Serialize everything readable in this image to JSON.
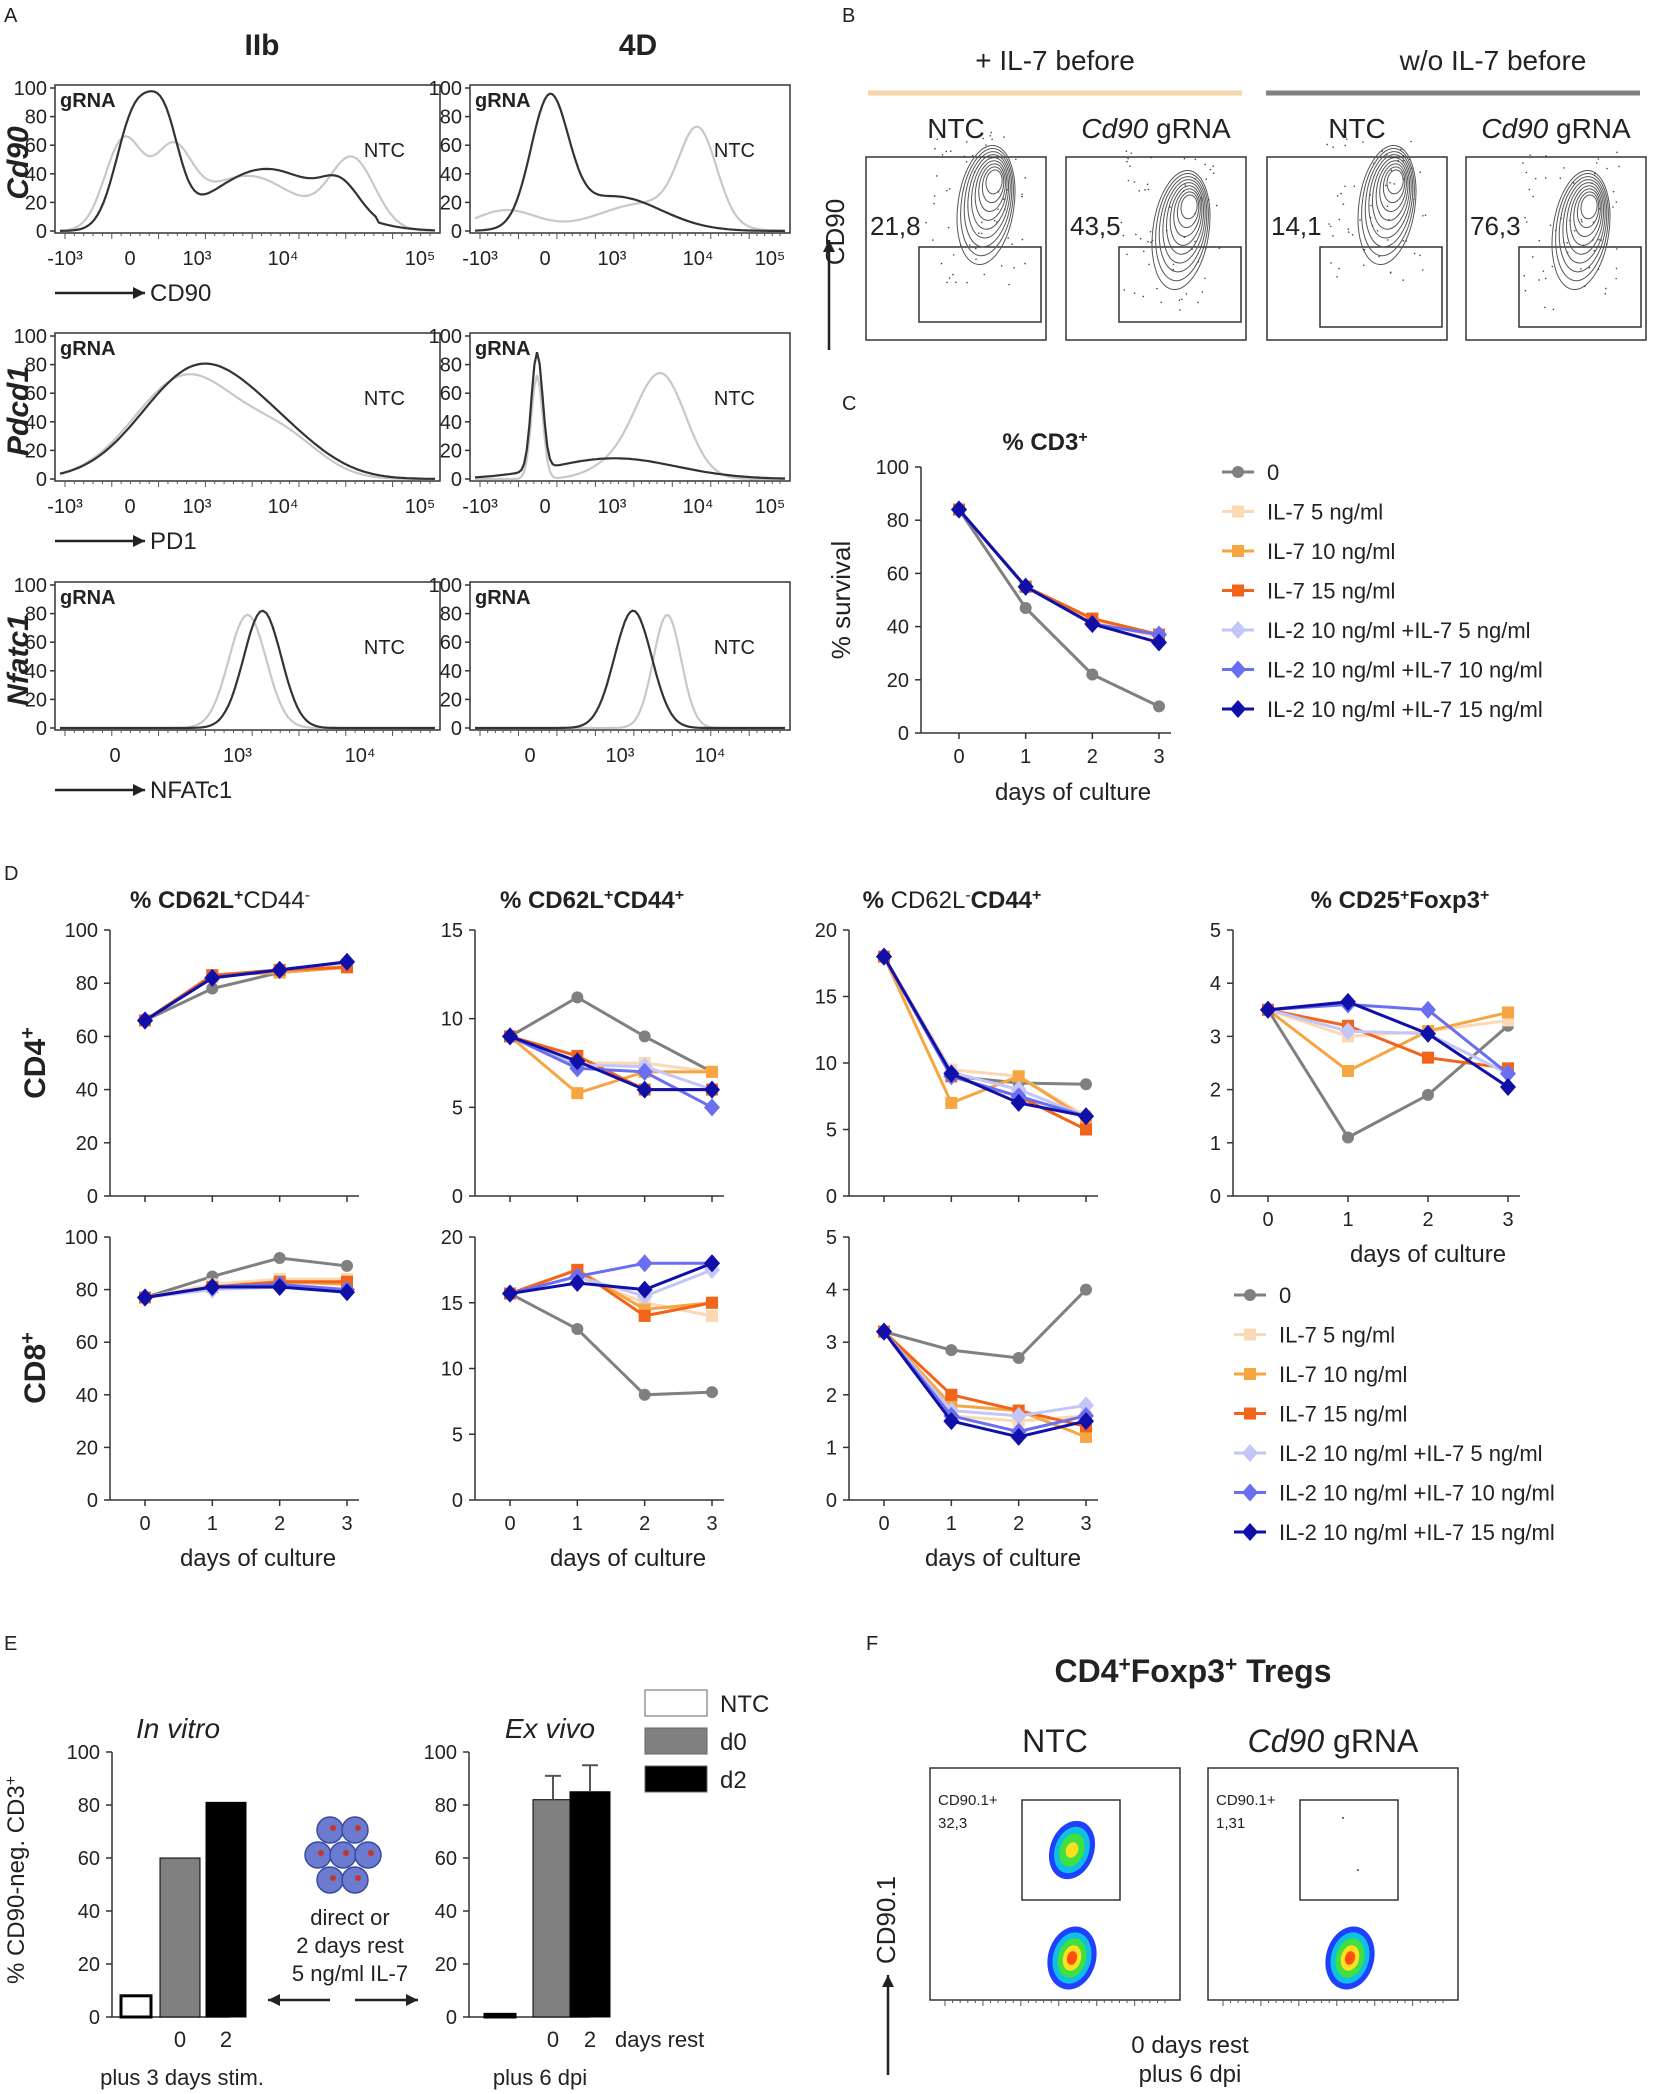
{
  "chart_data": [
    {
      "panel": "A",
      "type": "histogram",
      "columns": [
        "IIb",
        "4D"
      ],
      "sample_label": "gRNA",
      "control_label": "NTC",
      "rows": [
        {
          "gene": "Cd90",
          "marker": "CD90",
          "y_ticks": [
            "100",
            "80",
            "60",
            "40",
            "20",
            "0"
          ],
          "x_ticks_left": [
            "-10³",
            "0",
            "10³",
            "10⁴",
            "10⁵"
          ],
          "x_ticks_right": [
            "-10³",
            "0",
            "10³",
            "10⁴",
            "10⁵"
          ]
        },
        {
          "gene": "Pdcd1",
          "marker": "PD1",
          "y_ticks": [
            "100",
            "80",
            "60",
            "40",
            "20",
            "0"
          ],
          "x_ticks_left": [
            "-10³",
            "0",
            "10³",
            "10⁴",
            "10⁵"
          ],
          "x_ticks_right": [
            "-10³",
            "0",
            "10³",
            "10⁴",
            "10⁵"
          ]
        },
        {
          "gene": "Nfatc1",
          "marker": "NFATc1",
          "y_ticks": [
            "100",
            "80",
            "60",
            "40",
            "20",
            "0"
          ],
          "x_ticks_left": [
            "0",
            "10³",
            "10⁴"
          ],
          "x_ticks_right": [
            "0",
            "10³",
            "10⁴"
          ]
        }
      ]
    },
    {
      "panel": "B",
      "type": "contour",
      "groups": [
        "+ IL-7 before",
        "w/o IL-7 before"
      ],
      "group_colors": [
        "#f5d6a8",
        "#808080"
      ],
      "plots": [
        {
          "label": "NTC",
          "italic": "",
          "value": "21,8"
        },
        {
          "label": " gRNA",
          "italic": "Cd90",
          "value": "43,5"
        },
        {
          "label": "NTC",
          "italic": "",
          "value": "14,1"
        },
        {
          "label": " gRNA",
          "italic": "Cd90",
          "value": "76,3"
        }
      ],
      "ylabel": "CD90"
    },
    {
      "panel": "C",
      "type": "line",
      "title": "% CD3",
      "title_sup": "+",
      "xlabel": "days of culture",
      "ylabel": "% survival",
      "x": [
        0,
        1,
        2,
        3
      ],
      "ylim": [
        0,
        100
      ],
      "y_ticks": [
        0,
        20,
        40,
        60,
        80,
        100
      ],
      "series": [
        {
          "name": "0",
          "values": [
            84,
            47,
            22,
            10
          ]
        },
        {
          "name": "IL-7   5 ng/ml",
          "values": [
            84,
            55,
            42,
            36
          ]
        },
        {
          "name": "IL-7 10 ng/ml",
          "values": [
            84,
            55,
            43,
            37
          ]
        },
        {
          "name": "IL-7 15 ng/ml",
          "values": [
            84,
            55,
            43,
            37
          ]
        },
        {
          "name": "IL-2 10 ng/ml +IL-7   5 ng/ml",
          "values": [
            84,
            55,
            41,
            37
          ]
        },
        {
          "name": "IL-2 10 ng/ml +IL-7 10 ng/ml",
          "values": [
            84,
            55,
            41,
            37
          ]
        },
        {
          "name": "IL-2 10 ng/ml +IL-7 15 ng/ml",
          "values": [
            84,
            55,
            41,
            34
          ]
        }
      ]
    },
    {
      "panel": "D",
      "type": "line",
      "xlabel": "days of culture",
      "x": [
        0,
        1,
        2,
        3
      ],
      "row_labels": [
        "CD4",
        "CD8"
      ],
      "row_sup": "+",
      "legend": [
        "0",
        "IL-7   5 ng/ml",
        "IL-7 10 ng/ml",
        "IL-7 15 ng/ml",
        "IL-2 10 ng/ml +IL-7   5 ng/ml",
        "IL-2 10 ng/ml +IL-7 10 ng/ml",
        "IL-2 10 ng/ml +IL-7 15 ng/ml"
      ],
      "titles": [
        {
          "parts": [
            [
              "% ",
              "b"
            ],
            [
              "CD62L",
              "b"
            ],
            [
              "+",
              "bs"
            ],
            [
              "CD44",
              ""
            ],
            [
              "-",
              "s"
            ]
          ]
        },
        {
          "parts": [
            [
              "% ",
              "b"
            ],
            [
              "CD62L",
              "b"
            ],
            [
              "+",
              "bs"
            ],
            [
              "CD44",
              "b"
            ],
            [
              "+",
              "bs"
            ]
          ]
        },
        {
          "parts": [
            [
              "% ",
              "b"
            ],
            [
              "CD62L",
              ""
            ],
            [
              "-",
              "s"
            ],
            [
              "CD44",
              "b"
            ],
            [
              "+",
              "bs"
            ]
          ]
        },
        {
          "parts": [
            [
              "% ",
              "b"
            ],
            [
              "CD25",
              "b"
            ],
            [
              "+",
              "bs"
            ],
            [
              "Foxp3",
              "b"
            ],
            [
              "+",
              "bs"
            ]
          ]
        }
      ],
      "panels": [
        {
          "row": 0,
          "col": 0,
          "ylim": [
            0,
            100
          ],
          "y_ticks": [
            0,
            20,
            40,
            60,
            80,
            100
          ],
          "series": [
            [
              66,
              78,
              84,
              86
            ],
            [
              66,
              82,
              85,
              87
            ],
            [
              66,
              83,
              84,
              86
            ],
            [
              66,
              83,
              85,
              86
            ],
            [
              66,
              82,
              85,
              88
            ],
            [
              66,
              82,
              85,
              88
            ],
            [
              66,
              82,
              85,
              88
            ]
          ]
        },
        {
          "row": 0,
          "col": 1,
          "ylim": [
            0,
            15
          ],
          "y_ticks": [
            0,
            5,
            10,
            15
          ],
          "series": [
            [
              9,
              11.2,
              9,
              7
            ],
            [
              9,
              7.5,
              7.5,
              7
            ],
            [
              9,
              5.8,
              7,
              7
            ],
            [
              9,
              7.9,
              6,
              6
            ],
            [
              9,
              7.4,
              7.3,
              6
            ],
            [
              9,
              7.2,
              7,
              5
            ],
            [
              9,
              7.6,
              6,
              6
            ]
          ]
        },
        {
          "row": 0,
          "col": 2,
          "ylim": [
            0,
            20
          ],
          "y_ticks": [
            0,
            5,
            10,
            15,
            20
          ],
          "series": [
            [
              18,
              9,
              8.5,
              8.4
            ],
            [
              18,
              9.5,
              9,
              6
            ],
            [
              18,
              7,
              9,
              5.8
            ],
            [
              18,
              9,
              7.5,
              5
            ],
            [
              18,
              9.3,
              8,
              6
            ],
            [
              18,
              9,
              7.5,
              6
            ],
            [
              18,
              9.2,
              7,
              6
            ]
          ]
        },
        {
          "row": 0,
          "col": 3,
          "ylim": [
            0,
            5
          ],
          "y_ticks": [
            0,
            1,
            2,
            3,
            4,
            5
          ],
          "series": [
            [
              3.5,
              1.1,
              1.9,
              3.2
            ],
            [
              3.5,
              3.0,
              3.1,
              3.3
            ],
            [
              3.5,
              2.35,
              3.1,
              3.45
            ],
            [
              3.5,
              3.2,
              2.6,
              2.4
            ],
            [
              3.5,
              3.1,
              3.05,
              2.3
            ],
            [
              3.5,
              3.6,
              3.5,
              2.3
            ],
            [
              3.5,
              3.65,
              3.05,
              2.05
            ]
          ]
        },
        {
          "row": 1,
          "col": 0,
          "ylim": [
            0,
            100
          ],
          "y_ticks": [
            0,
            20,
            40,
            60,
            80,
            100
          ],
          "series": [
            [
              77,
              85,
              92,
              89
            ],
            [
              77,
              82,
              84,
              84
            ],
            [
              77,
              81,
              83,
              82
            ],
            [
              77,
              81,
              83,
              83
            ],
            [
              77,
              80,
              81,
              80
            ],
            [
              77,
              81,
              82,
              80
            ],
            [
              77,
              81,
              81,
              79
            ]
          ]
        },
        {
          "row": 1,
          "col": 1,
          "ylim": [
            0,
            20
          ],
          "y_ticks": [
            0,
            5,
            10,
            15,
            20
          ],
          "series": [
            [
              15.7,
              13,
              8,
              8.2
            ],
            [
              15.7,
              17,
              15,
              14
            ],
            [
              15.7,
              17.5,
              14.5,
              15
            ],
            [
              15.7,
              17.5,
              14,
              15
            ],
            [
              15.7,
              17,
              15.5,
              17.5
            ],
            [
              15.7,
              17,
              18,
              18
            ],
            [
              15.7,
              16.5,
              16,
              18
            ]
          ]
        },
        {
          "row": 1,
          "col": 2,
          "ylim": [
            0,
            5
          ],
          "y_ticks": [
            0,
            1,
            2,
            3,
            4,
            5
          ],
          "series": [
            [
              3.2,
              2.85,
              2.7,
              4
            ],
            [
              3.2,
              1.6,
              1.5,
              1.6
            ],
            [
              3.2,
              1.8,
              1.7,
              1.2
            ],
            [
              3.2,
              2,
              1.7,
              1.4
            ],
            [
              3.2,
              1.7,
              1.6,
              1.8
            ],
            [
              3.2,
              1.6,
              1.3,
              1.6
            ],
            [
              3.2,
              1.5,
              1.2,
              1.5
            ]
          ]
        }
      ]
    },
    {
      "panel": "E",
      "type": "bar",
      "ylabel": "% CD90-neg. CD3",
      "ylabel_sup": "+",
      "ylim": [
        0,
        100
      ],
      "y_ticks": [
        0,
        20,
        40,
        60,
        80,
        100
      ],
      "left": {
        "title": "In vitro",
        "categories": [
          "",
          "0",
          "2"
        ],
        "values": [
          8,
          60,
          81
        ],
        "errors": [
          0,
          0,
          0
        ],
        "xlabel": "plus 3 days stim."
      },
      "right": {
        "title": "Ex vivo",
        "categories": [
          "",
          "0",
          "2"
        ],
        "values": [
          1,
          82,
          85
        ],
        "errors": [
          0,
          9,
          10
        ],
        "xlabel": "plus 6 dpi",
        "extra_label": "days rest"
      },
      "middle_text": [
        "direct or",
        "2 days rest",
        "5 ng/ml IL-7"
      ],
      "legend": [
        "NTC",
        "d0",
        "d2"
      ],
      "legend_colors": [
        "#ffffff",
        "#808080",
        "#000000"
      ]
    },
    {
      "panel": "F",
      "type": "scatter",
      "title": "CD4",
      "title_sup": "+",
      "title_rest": "Foxp3",
      "title_sup2": "+",
      "title_end": " Tregs",
      "plots": [
        {
          "label": "NTC",
          "italic": "",
          "gate": "CD90.1+",
          "value": "32,3"
        },
        {
          "label": " gRNA",
          "italic": "Cd90",
          "gate": "CD90.1+",
          "value": "1,31"
        }
      ],
      "ylabel": "CD90.1",
      "xlabel": [
        "0 days rest",
        "plus 6 dpi"
      ]
    }
  ],
  "panel_letters": [
    "A",
    "B",
    "C",
    "D",
    "E",
    "F"
  ],
  "series_colors": [
    "#808080",
    "#fbd9b5",
    "#f7a541",
    "#f26419",
    "#c3c6f7",
    "#6a6ff0",
    "#1010a8"
  ],
  "series_markers": [
    "circle",
    "square",
    "square",
    "square",
    "diamond",
    "diamond",
    "diamond"
  ]
}
